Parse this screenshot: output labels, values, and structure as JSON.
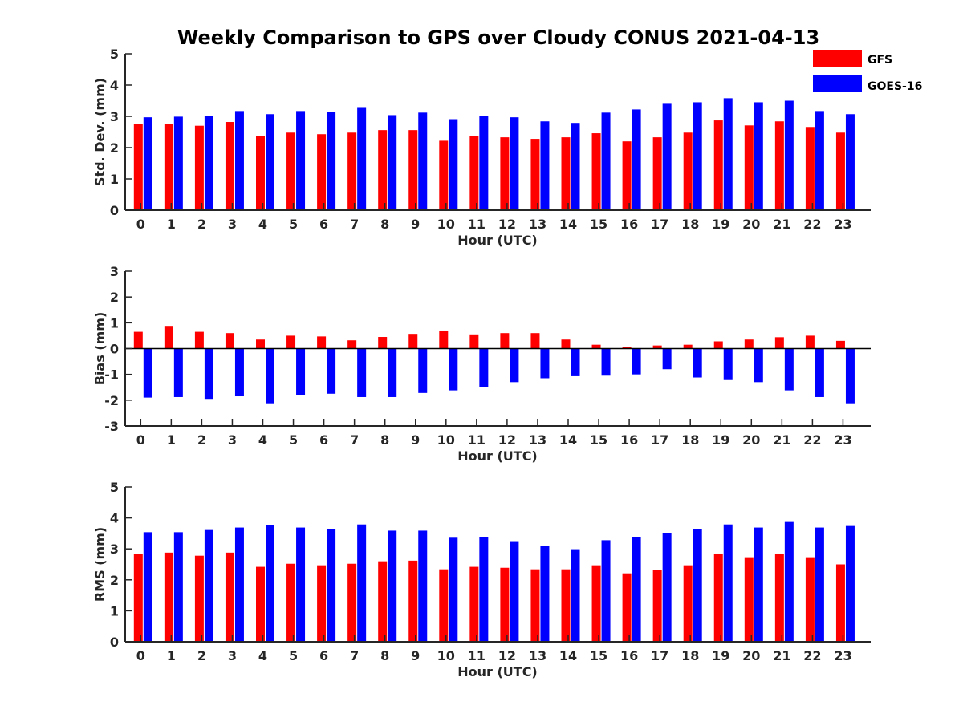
{
  "title": "Weekly Comparison to GPS over Cloudy CONUS 2021-04-13",
  "colors": {
    "GFS": "#ff0000",
    "GOES-16": "#0000ff"
  },
  "legend": {
    "placement": "top-right",
    "items": [
      "GFS",
      "GOES-16"
    ]
  },
  "chart_data": [
    {
      "type": "bar",
      "xlabel": "Hour (UTC)",
      "ylabel": "Std. Dev. (mm)",
      "ylim": [
        0,
        5
      ],
      "yticks": [
        0,
        1,
        2,
        3,
        4,
        5
      ],
      "categories": [
        "0",
        "1",
        "2",
        "3",
        "4",
        "5",
        "6",
        "7",
        "8",
        "9",
        "10",
        "11",
        "12",
        "13",
        "14",
        "15",
        "16",
        "17",
        "18",
        "19",
        "20",
        "21",
        "22",
        "23"
      ],
      "series": [
        {
          "name": "GFS",
          "values": [
            2.75,
            2.75,
            2.7,
            2.82,
            2.38,
            2.48,
            2.43,
            2.48,
            2.56,
            2.56,
            2.22,
            2.38,
            2.33,
            2.28,
            2.33,
            2.46,
            2.2,
            2.33,
            2.48,
            2.87,
            2.71,
            2.84,
            2.66,
            2.48
          ]
        },
        {
          "name": "GOES-16",
          "values": [
            2.97,
            2.99,
            3.02,
            3.17,
            3.07,
            3.17,
            3.14,
            3.27,
            3.04,
            3.12,
            2.91,
            3.02,
            2.97,
            2.84,
            2.79,
            3.12,
            3.22,
            3.4,
            3.45,
            3.58,
            3.45,
            3.5,
            3.17,
            3.07
          ]
        }
      ]
    },
    {
      "type": "bar",
      "xlabel": "Hour (UTC)",
      "ylabel": "Bias (mm)",
      "ylim": [
        -3,
        3
      ],
      "yticks": [
        -3,
        -2,
        -1,
        0,
        1,
        2,
        3
      ],
      "categories": [
        "0",
        "1",
        "2",
        "3",
        "4",
        "5",
        "6",
        "7",
        "8",
        "9",
        "10",
        "11",
        "12",
        "13",
        "14",
        "15",
        "16",
        "17",
        "18",
        "19",
        "20",
        "21",
        "22",
        "23"
      ],
      "series": [
        {
          "name": "GFS",
          "values": [
            0.65,
            0.88,
            0.65,
            0.6,
            0.35,
            0.5,
            0.47,
            0.32,
            0.45,
            0.57,
            0.7,
            0.55,
            0.6,
            0.6,
            0.35,
            0.15,
            0.06,
            0.12,
            0.15,
            0.28,
            0.35,
            0.44,
            0.5,
            0.3
          ]
        },
        {
          "name": "GOES-16",
          "values": [
            -1.9,
            -1.88,
            -1.95,
            -1.85,
            -2.12,
            -1.81,
            -1.75,
            -1.88,
            -1.88,
            -1.72,
            -1.62,
            -1.5,
            -1.3,
            -1.15,
            -1.07,
            -1.05,
            -1.0,
            -0.8,
            -1.12,
            -1.22,
            -1.3,
            -1.62,
            -1.88,
            -2.12
          ]
        }
      ]
    },
    {
      "type": "bar",
      "xlabel": "Hour (UTC)",
      "ylabel": "RMS (mm)",
      "ylim": [
        0,
        5
      ],
      "yticks": [
        0,
        1,
        2,
        3,
        4,
        5
      ],
      "categories": [
        "0",
        "1",
        "2",
        "3",
        "4",
        "5",
        "6",
        "7",
        "8",
        "9",
        "10",
        "11",
        "12",
        "13",
        "14",
        "15",
        "16",
        "17",
        "18",
        "19",
        "20",
        "21",
        "22",
        "23"
      ],
      "series": [
        {
          "name": "GFS",
          "values": [
            2.83,
            2.88,
            2.78,
            2.88,
            2.42,
            2.52,
            2.47,
            2.52,
            2.6,
            2.62,
            2.34,
            2.42,
            2.39,
            2.34,
            2.34,
            2.47,
            2.21,
            2.31,
            2.47,
            2.85,
            2.73,
            2.85,
            2.73,
            2.5
          ]
        },
        {
          "name": "GOES-16",
          "values": [
            3.54,
            3.54,
            3.61,
            3.69,
            3.77,
            3.69,
            3.64,
            3.79,
            3.59,
            3.59,
            3.36,
            3.38,
            3.25,
            3.1,
            2.99,
            3.28,
            3.38,
            3.51,
            3.64,
            3.79,
            3.69,
            3.87,
            3.69,
            3.74
          ]
        }
      ]
    }
  ]
}
